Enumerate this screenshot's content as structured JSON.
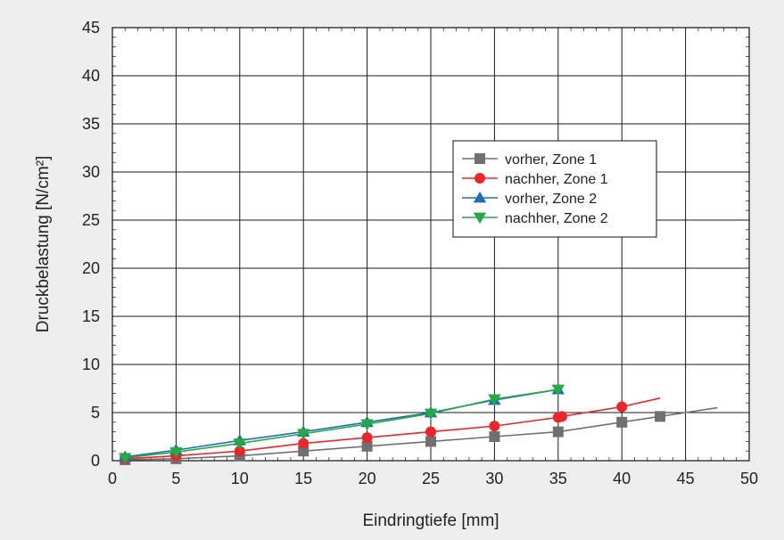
{
  "chart_data": {
    "type": "line",
    "title": "",
    "xlabel": "Eindringtiefe [mm]",
    "ylabel": "Druckbelastung [N/cm²]",
    "xlim": [
      0,
      50
    ],
    "ylim": [
      0,
      45
    ],
    "xticks": [
      "0",
      "5",
      "10",
      "15",
      "20",
      "25",
      "30",
      "35",
      "40",
      "45",
      "50"
    ],
    "yticks": [
      "0",
      "5",
      "10",
      "15",
      "20",
      "25",
      "30",
      "35",
      "40",
      "45"
    ],
    "grid": true,
    "legend_position": "center-right",
    "series": [
      {
        "name": "vorher, Zone 1",
        "color": "#707070",
        "marker": "square",
        "points": [
          [
            1,
            0.1
          ],
          [
            5,
            0.2
          ],
          [
            10,
            0.5
          ],
          [
            15,
            1.0
          ],
          [
            20,
            1.5
          ],
          [
            25,
            2.0
          ],
          [
            30,
            2.5
          ],
          [
            35,
            3.0
          ],
          [
            40,
            4.0
          ],
          [
            43,
            4.6
          ],
          [
            47.5,
            5.5
          ]
        ],
        "marked": [
          true,
          true,
          true,
          true,
          true,
          true,
          true,
          true,
          true,
          true,
          false
        ]
      },
      {
        "name": "nachher, Zone 1",
        "color": "#e8262b",
        "marker": "circle",
        "points": [
          [
            1,
            0.2
          ],
          [
            5,
            0.5
          ],
          [
            10,
            1.0
          ],
          [
            15,
            1.8
          ],
          [
            20,
            2.4
          ],
          [
            25,
            3.0
          ],
          [
            30,
            3.6
          ],
          [
            35,
            4.5
          ],
          [
            35.3,
            4.6
          ],
          [
            40,
            5.6
          ],
          [
            43,
            6.5
          ]
        ],
        "marked": [
          true,
          true,
          true,
          true,
          true,
          true,
          true,
          true,
          true,
          true,
          false
        ]
      },
      {
        "name": "vorher, Zone 2",
        "color": "#1f6fb4",
        "marker": "triangle-up",
        "points": [
          [
            1,
            0.4
          ],
          [
            5,
            1.1
          ],
          [
            10,
            2.1
          ],
          [
            15,
            3.0
          ],
          [
            20,
            4.0
          ],
          [
            25,
            5.0
          ],
          [
            30,
            6.3
          ],
          [
            35,
            7.4
          ]
        ],
        "marked": [
          true,
          true,
          true,
          true,
          true,
          true,
          true,
          true
        ]
      },
      {
        "name": "nachher, Zone 2",
        "color": "#27a844",
        "marker": "triangle-down",
        "points": [
          [
            1,
            0.3
          ],
          [
            5,
            0.9
          ],
          [
            10,
            1.8
          ],
          [
            15,
            2.8
          ],
          [
            20,
            3.8
          ],
          [
            25,
            4.9
          ],
          [
            30,
            6.4
          ],
          [
            35,
            7.4
          ]
        ],
        "marked": [
          true,
          true,
          true,
          true,
          true,
          true,
          true,
          true
        ]
      }
    ]
  }
}
